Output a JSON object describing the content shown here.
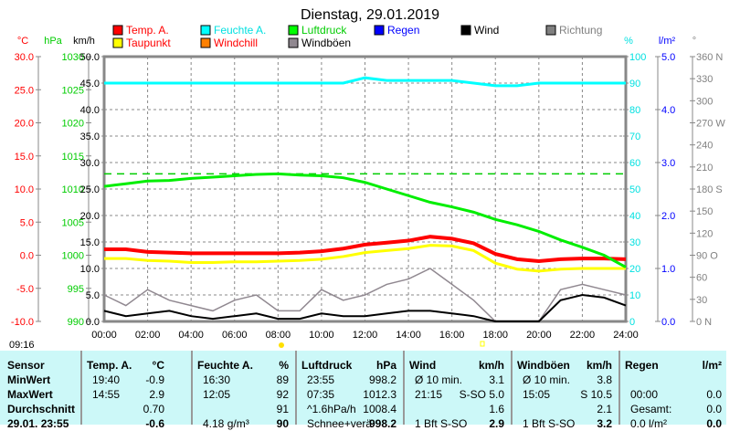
{
  "chart_data": {
    "type": "line",
    "title": "Dienstag, 29.01.2019",
    "x_hours": [
      0,
      1,
      2,
      3,
      4,
      5,
      6,
      7,
      8,
      9,
      10,
      11,
      12,
      13,
      14,
      15,
      16,
      17,
      18,
      19,
      20,
      21,
      22,
      23,
      24
    ],
    "xticks": [
      "00:00",
      "02:00",
      "04:00",
      "06:00",
      "08:00",
      "10:00",
      "12:00",
      "14:00",
      "16:00",
      "18:00",
      "20:00",
      "22:00",
      "24:00"
    ],
    "axes": {
      "temp": {
        "unit": "°C",
        "range": [
          -10,
          30
        ],
        "ticks": [
          "30.0",
          "25.0",
          "20.0",
          "15.0",
          "10.0",
          "5.0",
          "0.0",
          "-5.0",
          "-10.0"
        ],
        "color": "#ff0000"
      },
      "pressure": {
        "unit": "hPa",
        "range": [
          990,
          1030
        ],
        "ticks": [
          "1030",
          "1025",
          "1020",
          "1015",
          "1010",
          "1005",
          "1000",
          "995",
          "990"
        ],
        "color": "#00cc00"
      },
      "wind": {
        "unit": "km/h",
        "range": [
          0,
          50
        ],
        "ticks": [
          "50.0",
          "45.0",
          "40.0",
          "35.0",
          "30.0",
          "25.0",
          "20.0",
          "15.0",
          "10.0",
          "5.0",
          "0.0"
        ],
        "color": "#000000"
      },
      "humidity": {
        "unit": "%",
        "range": [
          0,
          100
        ],
        "ticks": [
          "100",
          "90",
          "80",
          "70",
          "60",
          "50",
          "40",
          "30",
          "20",
          "10",
          "0"
        ],
        "color": "#00e0e0"
      },
      "rain": {
        "unit": "l/m²",
        "range": [
          0,
          5
        ],
        "ticks": [
          "5.0",
          "4.0",
          "3.0",
          "2.0",
          "1.0",
          "0.0"
        ],
        "color": "#0000ff"
      },
      "direction": {
        "unit": "°",
        "range": [
          0,
          360
        ],
        "ticks": [
          "360 N",
          "330",
          "300",
          "270 W",
          "240",
          "210",
          "180 S",
          "150",
          "120",
          "90  O",
          "60",
          "30",
          "0    N"
        ],
        "color": "#808080"
      }
    },
    "legend": [
      {
        "name": "Temp. A.",
        "color": "#ff0000",
        "text_color": "#ff0000"
      },
      {
        "name": "Feuchte A.",
        "color": "#00ffff",
        "text_color": "#00e0e0"
      },
      {
        "name": "Luftdruck",
        "color": "#00ff00",
        "text_color": "#00cc00"
      },
      {
        "name": "Regen",
        "color": "#0000ff",
        "text_color": "#0000ff"
      },
      {
        "name": "Wind",
        "color": "#000000",
        "text_color": "#000000"
      },
      {
        "name": "Richtung",
        "color": "#808080",
        "text_color": "#808080"
      },
      {
        "name": "Taupunkt",
        "color": "#ffff00",
        "text_color": "#ff0000"
      },
      {
        "name": "Windchill",
        "color": "#ff8000",
        "text_color": "#ff0000"
      },
      {
        "name": "Windböen",
        "color": "#908890",
        "text_color": "#000000"
      }
    ],
    "series": [
      {
        "name": "Temp. A.",
        "axis": "temp",
        "color": "#ff0000",
        "values": [
          0.9,
          0.9,
          0.5,
          0.4,
          0.3,
          0.3,
          0.3,
          0.3,
          0.3,
          0.4,
          0.6,
          1.0,
          1.6,
          1.9,
          2.2,
          2.8,
          2.5,
          1.8,
          0.2,
          -0.6,
          -0.9,
          -0.6,
          -0.5,
          -0.5,
          -0.6
        ]
      },
      {
        "name": "Taupunkt",
        "axis": "temp",
        "color": "#ffff00",
        "values": [
          -0.5,
          -0.5,
          -0.8,
          -0.9,
          -1.1,
          -1.1,
          -1.0,
          -1.0,
          -0.9,
          -0.8,
          -0.6,
          -0.2,
          0.4,
          0.7,
          1.0,
          1.5,
          1.4,
          0.7,
          -1.2,
          -2.1,
          -2.4,
          -2.1,
          -2.0,
          -2.0,
          -2.0
        ]
      },
      {
        "name": "Feuchte A.",
        "axis": "humidity",
        "color": "#00ffff",
        "values": [
          90,
          90,
          90,
          90,
          90,
          90,
          90,
          90,
          90,
          90,
          90,
          90,
          92,
          91,
          91,
          91,
          91,
          90,
          89,
          89,
          90,
          90,
          90,
          90,
          90
        ]
      },
      {
        "name": "Luftdruck",
        "axis": "pressure",
        "color": "#00ee00",
        "values": [
          1010.4,
          1010.8,
          1011.2,
          1011.3,
          1011.6,
          1011.8,
          1012.0,
          1012.2,
          1012.3,
          1012.1,
          1012.0,
          1011.7,
          1011.0,
          1010.0,
          1009.0,
          1008.0,
          1007.3,
          1006.5,
          1005.4,
          1004.6,
          1003.6,
          1002.3,
          1001.2,
          1000.0,
          998.2
        ]
      },
      {
        "name": "Wind",
        "axis": "wind",
        "color": "#000000",
        "values": [
          2,
          1,
          1.5,
          2,
          1,
          0.5,
          1,
          1.5,
          0.5,
          0.5,
          1.5,
          1,
          1,
          1.5,
          2,
          2,
          1.5,
          1,
          0,
          0,
          0,
          4,
          5,
          4.5,
          3
        ]
      },
      {
        "name": "Windböen",
        "axis": "wind",
        "color": "#908890",
        "values": [
          5,
          3,
          6,
          4,
          3,
          2,
          4,
          5,
          2,
          2,
          6,
          4,
          5,
          7,
          8,
          10,
          7,
          4,
          0,
          0,
          0,
          6,
          7,
          6,
          5
        ]
      }
    ],
    "reference_lines": [
      {
        "axis": "pressure",
        "value": 1012.3,
        "color": "#00cc00",
        "style": "dashed"
      }
    ]
  },
  "sunrise": "09:16",
  "table": {
    "columns": [
      {
        "head": "Sensor",
        "rows": [
          "MinWert",
          "MaxWert",
          "Durchschnitt",
          "29.01. 23:55"
        ]
      },
      {
        "head": "Temp. A.",
        "unit": "°C",
        "rows": [
          [
            "19:40",
            "-0.9"
          ],
          [
            "14:55",
            "2.9"
          ],
          [
            "",
            "0.70"
          ],
          [
            "",
            "-0.6"
          ]
        ]
      },
      {
        "head": "Feuchte A.",
        "unit": "%",
        "rows": [
          [
            "16:30",
            "89"
          ],
          [
            "12:05",
            "92"
          ],
          [
            "",
            "91"
          ],
          [
            "4.18 g/m³",
            "90"
          ]
        ]
      },
      {
        "head": "Luftdruck",
        "unit": "hPa",
        "rows": [
          [
            "23:55",
            "998.2"
          ],
          [
            "07:35",
            "1012.3"
          ],
          [
            "^1.6hPa/h",
            "1008.4"
          ],
          [
            "Schnee+verä",
            "998.2"
          ]
        ]
      },
      {
        "head": "Wind",
        "unit": "km/h",
        "rows": [
          [
            "Ø 10 min.",
            "3.1"
          ],
          [
            "21:15",
            "S-SO 5.0"
          ],
          [
            "",
            "1.6"
          ],
          [
            "1 Bft S-SO",
            "2.9"
          ]
        ]
      },
      {
        "head": "Windböen",
        "unit": "km/h",
        "rows": [
          [
            "Ø 10 min.",
            "3.8"
          ],
          [
            "15:05",
            "S 10.5"
          ],
          [
            "",
            "2.1"
          ],
          [
            "1 Bft S-SO",
            "3.2"
          ]
        ]
      },
      {
        "head": "Regen",
        "unit": "l/m²",
        "rows": [
          [
            "",
            ""
          ],
          [
            "00:00",
            "0.0"
          ],
          [
            "Gesamt:",
            "0.0"
          ],
          [
            "0.0 l/m²",
            "0.0"
          ]
        ]
      }
    ]
  }
}
